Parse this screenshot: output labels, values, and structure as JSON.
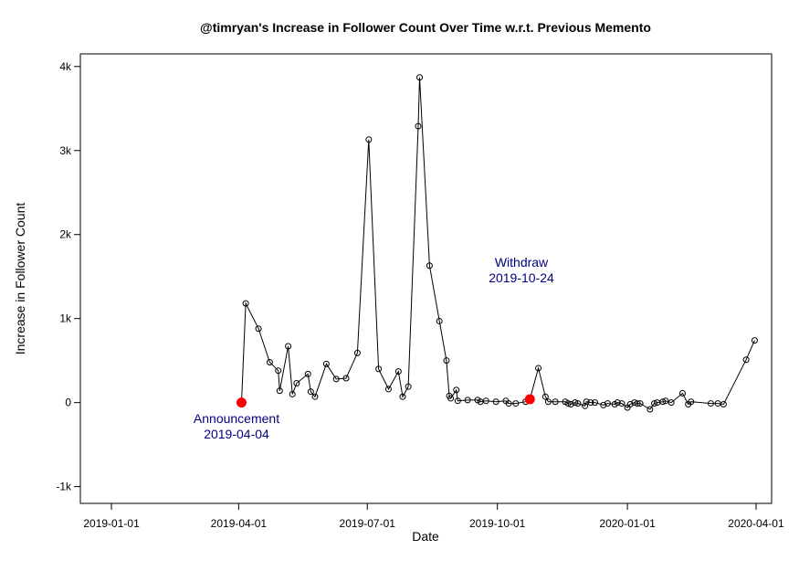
{
  "chart_data": {
    "type": "line",
    "title": "@timryan's Increase in Follower Count Over Time w.r.t. Previous Memento",
    "xlabel": "Date",
    "ylabel": "Increase in Follower Count",
    "xlim": [
      "2018-12-10",
      "2020-04-12"
    ],
    "ylim": [
      -1200,
      4150
    ],
    "x_ticks": [
      {
        "date": "2019-01-01",
        "label": "2019-01-01"
      },
      {
        "date": "2019-04-01",
        "label": "2019-04-01"
      },
      {
        "date": "2019-07-01",
        "label": "2019-07-01"
      },
      {
        "date": "2019-10-01",
        "label": "2019-10-01"
      },
      {
        "date": "2020-01-01",
        "label": "2020-01-01"
      },
      {
        "date": "2020-04-01",
        "label": "2020-04-01"
      }
    ],
    "y_ticks": [
      {
        "value": -1000,
        "label": "-1k"
      },
      {
        "value": 0,
        "label": "0"
      },
      {
        "value": 1000,
        "label": "1k"
      },
      {
        "value": 2000,
        "label": "2k"
      },
      {
        "value": 3000,
        "label": "3k"
      },
      {
        "value": 4000,
        "label": "4k"
      }
    ],
    "series": [
      {
        "marker": "open-circle",
        "color": "#000000",
        "points": [
          [
            "2019-04-03",
            0
          ],
          [
            "2019-04-06",
            1180
          ],
          [
            "2019-04-15",
            880
          ],
          [
            "2019-04-23",
            480
          ],
          [
            "2019-04-29",
            380
          ],
          [
            "2019-04-30",
            140
          ],
          [
            "2019-05-06",
            670
          ],
          [
            "2019-05-09",
            100
          ],
          [
            "2019-05-12",
            230
          ],
          [
            "2019-05-20",
            340
          ],
          [
            "2019-05-22",
            130
          ],
          [
            "2019-05-25",
            70
          ],
          [
            "2019-06-02",
            460
          ],
          [
            "2019-06-09",
            280
          ],
          [
            "2019-06-16",
            290
          ],
          [
            "2019-06-24",
            590
          ],
          [
            "2019-07-02",
            3130
          ],
          [
            "2019-07-09",
            400
          ],
          [
            "2019-07-16",
            160
          ],
          [
            "2019-07-23",
            370
          ],
          [
            "2019-07-26",
            70
          ],
          [
            "2019-07-30",
            190
          ],
          [
            "2019-08-06",
            3290
          ],
          [
            "2019-08-07",
            3870
          ],
          [
            "2019-08-14",
            1630
          ],
          [
            "2019-08-21",
            970
          ],
          [
            "2019-08-26",
            500
          ],
          [
            "2019-08-28",
            80
          ],
          [
            "2019-08-29",
            50
          ],
          [
            "2019-09-02",
            150
          ],
          [
            "2019-09-03",
            20
          ],
          [
            "2019-09-10",
            30
          ],
          [
            "2019-09-17",
            30
          ],
          [
            "2019-09-19",
            10
          ],
          [
            "2019-09-23",
            20
          ],
          [
            "2019-09-30",
            10
          ],
          [
            "2019-10-07",
            20
          ],
          [
            "2019-10-09",
            -10
          ],
          [
            "2019-10-14",
            -10
          ],
          [
            "2019-10-21",
            10
          ],
          [
            "2019-10-23",
            30
          ],
          [
            "2019-10-24",
            40
          ],
          [
            "2019-10-30",
            410
          ],
          [
            "2019-11-04",
            70
          ],
          [
            "2019-11-06",
            10
          ],
          [
            "2019-11-11",
            10
          ],
          [
            "2019-11-18",
            10
          ],
          [
            "2019-11-20",
            -10
          ],
          [
            "2019-11-22",
            -20
          ],
          [
            "2019-11-25",
            0
          ],
          [
            "2019-11-27",
            -10
          ],
          [
            "2019-12-02",
            -40
          ],
          [
            "2019-12-03",
            10
          ],
          [
            "2019-12-06",
            0
          ],
          [
            "2019-12-09",
            0
          ],
          [
            "2019-12-15",
            -30
          ],
          [
            "2019-12-18",
            -10
          ],
          [
            "2019-12-23",
            -20
          ],
          [
            "2019-12-25",
            0
          ],
          [
            "2019-12-28",
            -10
          ],
          [
            "2020-01-01",
            -60
          ],
          [
            "2020-01-03",
            -20
          ],
          [
            "2020-01-06",
            0
          ],
          [
            "2020-01-08",
            -10
          ],
          [
            "2020-01-10",
            -10
          ],
          [
            "2020-01-17",
            -80
          ],
          [
            "2020-01-20",
            -10
          ],
          [
            "2020-01-22",
            0
          ],
          [
            "2020-01-26",
            10
          ],
          [
            "2020-01-28",
            20
          ],
          [
            "2020-02-01",
            0
          ],
          [
            "2020-02-09",
            110
          ],
          [
            "2020-02-13",
            -20
          ],
          [
            "2020-02-15",
            10
          ],
          [
            "2020-02-29",
            -10
          ],
          [
            "2020-03-05",
            -10
          ],
          [
            "2020-03-09",
            -20
          ],
          [
            "2020-03-25",
            510
          ],
          [
            "2020-03-31",
            740
          ]
        ]
      }
    ],
    "highlights": [
      {
        "date": "2019-04-03",
        "value": 0,
        "color": "#ff0000"
      },
      {
        "date": "2019-10-24",
        "value": 40,
        "color": "#ff0000"
      }
    ],
    "annotations": [
      {
        "lines": [
          "Announcement",
          "2019-04-04"
        ],
        "color": "#000080"
      },
      {
        "lines": [
          "Withdraw",
          "2019-10-24"
        ],
        "color": "#000080"
      }
    ],
    "grid": false,
    "legend": "none"
  }
}
